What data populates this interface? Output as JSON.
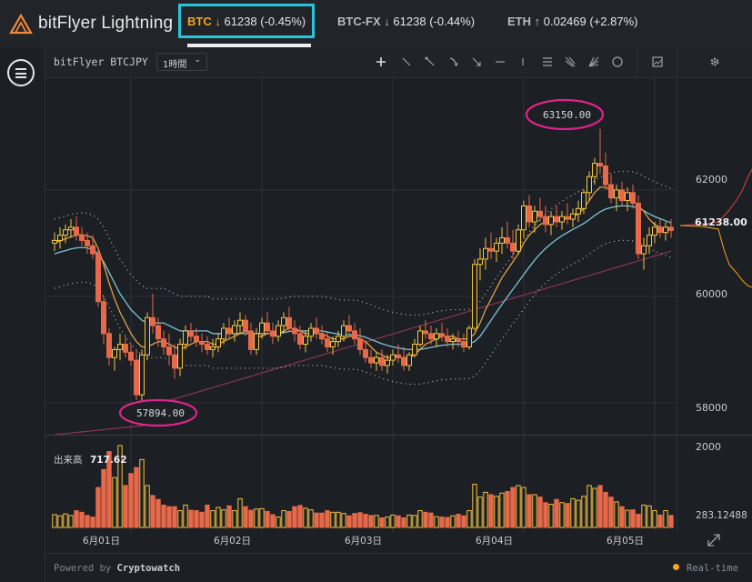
{
  "header": {
    "logo_text": "bitFlyer Lightning",
    "tickers": [
      {
        "symbol": "BTC",
        "direction": "down",
        "price": "61238",
        "change": "(-0.45%)",
        "active": true
      },
      {
        "symbol": "BTC-FX",
        "direction": "down",
        "price": "61238",
        "change": "(-0.44%)",
        "active": false
      },
      {
        "symbol": "ETH",
        "direction": "up",
        "price": "0.02469",
        "change": "(+2.87%)",
        "active": false
      }
    ]
  },
  "toolbar": {
    "pair_label": "bitFlyer BTCJPY",
    "timeframe": "1時間",
    "tools": [
      "crosshair-icon",
      "line-icon",
      "ray-icon",
      "arrow-curve-icon",
      "arrow-down-icon",
      "horizontal-line-icon",
      "vertical-line-icon",
      "channel-icon",
      "pitchfork-icon",
      "fan-icon",
      "circle-icon",
      "screenshot-icon",
      "gear-icon"
    ]
  },
  "chart_data": {
    "type": "candlestick",
    "y_axis_labels": [
      "62000",
      "60000",
      "58000"
    ],
    "ylim": [
      57400,
      64100
    ],
    "x_axis_labels": [
      "6月01日",
      "6月02日",
      "6月03日",
      "6月04日",
      "6月05日"
    ],
    "last_price_label": "61238.00",
    "high_annotation": "63150.00",
    "low_annotation": "57894.00",
    "volume_title": "出来高",
    "volume_value": "717.62",
    "volume_axis_labels": [
      "2000",
      "283.12488"
    ],
    "candles": [
      [
        61000,
        61200,
        60850,
        61050
      ],
      [
        61050,
        61300,
        60900,
        61150
      ],
      [
        61150,
        61350,
        61000,
        61250
      ],
      [
        61250,
        61450,
        61100,
        61300
      ],
      [
        61300,
        61500,
        61050,
        61150
      ],
      [
        61150,
        61300,
        60950,
        61050
      ],
      [
        61050,
        61200,
        60800,
        60950
      ],
      [
        60950,
        61150,
        60700,
        60800
      ],
      [
        60800,
        60900,
        59800,
        59900
      ],
      [
        59900,
        60000,
        59100,
        59300
      ],
      [
        59300,
        59400,
        58700,
        58850
      ],
      [
        58850,
        59050,
        58600,
        59000
      ],
      [
        59000,
        59300,
        58800,
        59100
      ],
      [
        59100,
        59250,
        58850,
        58950
      ],
      [
        58950,
        59100,
        58700,
        58800
      ],
      [
        58800,
        59000,
        58050,
        58150
      ],
      [
        58150,
        59000,
        57894,
        58900
      ],
      [
        58900,
        59700,
        58800,
        59600
      ],
      [
        59600,
        60050,
        59300,
        59450
      ],
      [
        59450,
        59600,
        59050,
        59200
      ],
      [
        59200,
        59350,
        58900,
        59050
      ],
      [
        59050,
        59300,
        58700,
        58900
      ],
      [
        58900,
        59100,
        58450,
        58650
      ],
      [
        58650,
        59200,
        58500,
        59100
      ],
      [
        59100,
        59450,
        59000,
        59350
      ],
      [
        59350,
        59500,
        59150,
        59250
      ],
      [
        59250,
        59400,
        59050,
        59150
      ],
      [
        59150,
        59300,
        58950,
        59100
      ],
      [
        59100,
        59250,
        58900,
        59000
      ],
      [
        59000,
        59200,
        58850,
        59050
      ],
      [
        59050,
        59300,
        58950,
        59200
      ],
      [
        59200,
        59500,
        59100,
        59400
      ],
      [
        59400,
        59600,
        59200,
        59300
      ],
      [
        59300,
        59550,
        59150,
        59450
      ],
      [
        59450,
        59700,
        59300,
        59550
      ],
      [
        59550,
        59650,
        59250,
        59350
      ],
      [
        59350,
        59500,
        58900,
        59000
      ],
      [
        59000,
        59400,
        58900,
        59300
      ],
      [
        59300,
        59600,
        59200,
        59500
      ],
      [
        59500,
        59700,
        59300,
        59350
      ],
      [
        59350,
        59500,
        59100,
        59250
      ],
      [
        59250,
        59550,
        59150,
        59450
      ],
      [
        59450,
        59700,
        59300,
        59600
      ],
      [
        59600,
        59800,
        59350,
        59400
      ],
      [
        59400,
        59550,
        59150,
        59300
      ],
      [
        59300,
        59450,
        59000,
        59100
      ],
      [
        59100,
        59350,
        58950,
        59250
      ],
      [
        59250,
        59500,
        59150,
        59400
      ],
      [
        59400,
        59600,
        59200,
        59300
      ],
      [
        59300,
        59450,
        59100,
        59200
      ],
      [
        59200,
        59350,
        58950,
        59050
      ],
      [
        59050,
        59250,
        58900,
        59150
      ],
      [
        59150,
        59350,
        59050,
        59250
      ],
      [
        59250,
        59550,
        59150,
        59450
      ],
      [
        59450,
        59650,
        59300,
        59350
      ],
      [
        59350,
        59500,
        59100,
        59200
      ],
      [
        59200,
        59400,
        58900,
        59000
      ],
      [
        59000,
        59150,
        58750,
        58850
      ],
      [
        58850,
        59000,
        58650,
        58750
      ],
      [
        58750,
        58950,
        58600,
        58850
      ],
      [
        58850,
        59000,
        58600,
        58700
      ],
      [
        58700,
        58900,
        58550,
        58800
      ],
      [
        58800,
        59000,
        58700,
        58900
      ],
      [
        58900,
        59100,
        58750,
        58850
      ],
      [
        58850,
        59050,
        58600,
        58700
      ],
      [
        58700,
        58950,
        58600,
        58900
      ],
      [
        58900,
        59200,
        58850,
        59100
      ],
      [
        59100,
        59450,
        59050,
        59350
      ],
      [
        59350,
        59550,
        59200,
        59300
      ],
      [
        59300,
        59450,
        59100,
        59200
      ],
      [
        59200,
        59400,
        59050,
        59300
      ],
      [
        59300,
        59500,
        59150,
        59250
      ],
      [
        59250,
        59400,
        59050,
        59150
      ],
      [
        59150,
        59300,
        59000,
        59200
      ],
      [
        59200,
        59350,
        59050,
        59150
      ],
      [
        59150,
        59300,
        58950,
        59050
      ],
      [
        59050,
        59450,
        59000,
        59400
      ],
      [
        59400,
        60700,
        59350,
        60600
      ],
      [
        60600,
        60900,
        60300,
        60700
      ],
      [
        60700,
        61100,
        60500,
        60900
      ],
      [
        60900,
        61200,
        60700,
        60850
      ],
      [
        60850,
        61100,
        60650,
        61000
      ],
      [
        61000,
        61300,
        60800,
        61100
      ],
      [
        61100,
        61400,
        60900,
        61000
      ],
      [
        61000,
        61250,
        60700,
        60850
      ],
      [
        60850,
        61350,
        60800,
        61250
      ],
      [
        61250,
        61800,
        61100,
        61700
      ],
      [
        61700,
        61900,
        61300,
        61400
      ],
      [
        61400,
        61700,
        61200,
        61600
      ],
      [
        61600,
        61850,
        61400,
        61500
      ],
      [
        61500,
        61700,
        61200,
        61350
      ],
      [
        61350,
        61600,
        61150,
        61500
      ],
      [
        61500,
        61700,
        61300,
        61400
      ],
      [
        61400,
        61600,
        61250,
        61500
      ],
      [
        61500,
        61750,
        61350,
        61450
      ],
      [
        61450,
        61650,
        61300,
        61550
      ],
      [
        61550,
        61800,
        61400,
        61650
      ],
      [
        61650,
        62000,
        61550,
        61950
      ],
      [
        61950,
        62350,
        61800,
        62250
      ],
      [
        62250,
        62600,
        62100,
        62500
      ],
      [
        62500,
        63150,
        62300,
        62450
      ],
      [
        62450,
        62700,
        62000,
        62100
      ],
      [
        62100,
        62300,
        61750,
        61850
      ],
      [
        61850,
        62100,
        61600,
        62000
      ],
      [
        62000,
        62150,
        61700,
        61800
      ],
      [
        61800,
        62050,
        61600,
        61950
      ],
      [
        61950,
        62100,
        61650,
        61750
      ],
      [
        61750,
        61900,
        60700,
        60800
      ],
      [
        60800,
        61100,
        60500,
        60950
      ],
      [
        60950,
        61300,
        60800,
        61150
      ],
      [
        61150,
        61400,
        61000,
        61300
      ],
      [
        61300,
        61450,
        61100,
        61200
      ],
      [
        61200,
        61400,
        61050,
        61300
      ],
      [
        61300,
        61450,
        61100,
        61238
      ]
    ],
    "volumes": [
      320,
      290,
      340,
      300,
      420,
      380,
      300,
      260,
      1000,
      1450,
      1900,
      1250,
      2050,
      1050,
      1350,
      1500,
      1700,
      1050,
      800,
      700,
      560,
      520,
      520,
      420,
      560,
      430,
      420,
      380,
      560,
      420,
      500,
      440,
      540,
      420,
      720,
      520,
      430,
      460,
      470,
      400,
      320,
      260,
      420,
      400,
      520,
      550,
      480,
      440,
      360,
      360,
      420,
      380,
      380,
      350,
      290,
      350,
      370,
      330,
      300,
      300,
      240,
      260,
      310,
      290,
      240,
      310,
      300,
      420,
      380,
      360,
      270,
      260,
      250,
      290,
      330,
      290,
      420,
      1080,
      760,
      880,
      820,
      780,
      860,
      900,
      1000,
      1050,
      1000,
      820,
      820,
      760,
      620,
      580,
      700,
      620,
      600,
      720,
      680,
      780,
      1050,
      980,
      1050,
      880,
      760,
      640,
      520,
      430,
      440,
      330,
      560,
      540,
      420,
      310,
      420,
      300
    ],
    "ma_short": [
      61000,
      61040,
      61080,
      61120,
      61150,
      61160,
      61140,
      61100,
      60900,
      60600,
      60250,
      59950,
      59700,
      59500,
      59300,
      59150,
      59050,
      59050,
      59100,
      59150,
      59150,
      59100,
      59050,
      59000,
      59050,
      59100,
      59150,
      59150,
      59150,
      59100,
      59100,
      59150,
      59200,
      59250,
      59300,
      59350,
      59300,
      59250,
      59250,
      59300,
      59300,
      59300,
      59350,
      59400,
      59400,
      59350,
      59300,
      59300,
      59300,
      59300,
      59250,
      59200,
      59200,
      59200,
      59250,
      59250,
      59200,
      59150,
      59050,
      58950,
      58900,
      58850,
      58850,
      58850,
      58850,
      58850,
      58900,
      59000,
      59100,
      59150,
      59200,
      59250,
      59250,
      59250,
      59200,
      59200,
      59200,
      59300,
      59500,
      59750,
      59950,
      60150,
      60350,
      60500,
      60650,
      60800,
      61000,
      61150,
      61250,
      61350,
      61400,
      61450,
      61450,
      61450,
      61450,
      61500,
      61550,
      61650,
      61800,
      61950,
      62050,
      62050,
      62000,
      61950,
      61900,
      61850,
      61800,
      61700,
      61600,
      61450,
      61350,
      61300,
      61250,
      61238
    ],
    "ma_mid": [
      60800,
      60830,
      60860,
      60890,
      60910,
      60920,
      60910,
      60880,
      60800,
      60650,
      60450,
      60250,
      60050,
      59900,
      59750,
      59650,
      59550,
      59500,
      59500,
      59500,
      59500,
      59450,
      59400,
      59350,
      59350,
      59350,
      59350,
      59350,
      59350,
      59300,
      59300,
      59300,
      59300,
      59300,
      59300,
      59300,
      59300,
      59300,
      59300,
      59300,
      59300,
      59300,
      59320,
      59340,
      59350,
      59350,
      59350,
      59350,
      59350,
      59350,
      59330,
      59310,
      59290,
      59280,
      59280,
      59280,
      59260,
      59230,
      59190,
      59150,
      59110,
      59080,
      59050,
      59030,
      59010,
      59000,
      59000,
      59000,
      59020,
      59040,
      59060,
      59080,
      59090,
      59100,
      59100,
      59100,
      59110,
      59150,
      59250,
      59400,
      59550,
      59700,
      59850,
      59990,
      60130,
      60270,
      60410,
      60550,
      60680,
      60800,
      60900,
      60990,
      61070,
      61140,
      61200,
      61260,
      61310,
      61370,
      61440,
      61520,
      61590,
      61640,
      61670,
      61690,
      61700,
      61700,
      61690,
      61660,
      61610,
      61550,
      61500,
      61460,
      61420,
      61380
    ]
  },
  "footer": {
    "powered_by": "Powered by",
    "powered_brand": "Cryptowatch",
    "status": "Real-time"
  }
}
